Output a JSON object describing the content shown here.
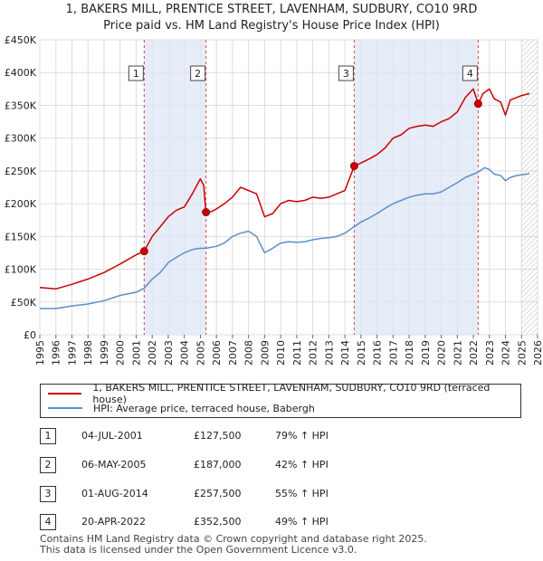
{
  "chart_data": {
    "type": "line",
    "title": "1, BAKERS MILL, PRENTICE STREET, LAVENHAM, SUDBURY, CO10 9RD",
    "subtitle": "Price paid vs. HM Land Registry's House Price Index (HPI)",
    "xlim": [
      1995,
      2026
    ],
    "ylim": [
      0,
      450000
    ],
    "x_ticks": [
      "1995",
      "1996",
      "1997",
      "1998",
      "1999",
      "2000",
      "2001",
      "2002",
      "2003",
      "2004",
      "2005",
      "2006",
      "2007",
      "2008",
      "2009",
      "2010",
      "2011",
      "2012",
      "2013",
      "2014",
      "2015",
      "2016",
      "2017",
      "2018",
      "2019",
      "2020",
      "2021",
      "2022",
      "2023",
      "2024",
      "2025",
      "2026"
    ],
    "y_ticks": [
      {
        "value": 0,
        "label": "£0"
      },
      {
        "value": 50000,
        "label": "£50K"
      },
      {
        "value": 100000,
        "label": "£100K"
      },
      {
        "value": 150000,
        "label": "£150K"
      },
      {
        "value": 200000,
        "label": "£200K"
      },
      {
        "value": 250000,
        "label": "£250K"
      },
      {
        "value": 300000,
        "label": "£300K"
      },
      {
        "value": 350000,
        "label": "£350K"
      },
      {
        "value": 400000,
        "label": "£400K"
      },
      {
        "value": 450000,
        "label": "£450K"
      }
    ],
    "shaded_ranges": [
      [
        2001.5,
        2005.35
      ],
      [
        2014.58,
        2022.3
      ]
    ],
    "future_hatch_from": 2025.0,
    "series": [
      {
        "name": "1, BAKERS MILL, PRENTICE STREET, LAVENHAM, SUDBURY, CO10 9RD (terraced house)",
        "color": "#cc0000",
        "points": [
          [
            1995.0,
            72000
          ],
          [
            1996.0,
            70000
          ],
          [
            1997.0,
            77000
          ],
          [
            1998.0,
            85000
          ],
          [
            1999.0,
            95000
          ],
          [
            2000.0,
            108000
          ],
          [
            2001.0,
            122000
          ],
          [
            2001.5,
            127500
          ],
          [
            2002.0,
            150000
          ],
          [
            2002.5,
            165000
          ],
          [
            2003.0,
            180000
          ],
          [
            2003.5,
            190000
          ],
          [
            2004.0,
            195000
          ],
          [
            2004.5,
            215000
          ],
          [
            2005.0,
            238000
          ],
          [
            2005.2,
            228000
          ],
          [
            2005.35,
            187000
          ],
          [
            2005.7,
            188000
          ],
          [
            2006.0,
            192000
          ],
          [
            2006.5,
            200000
          ],
          [
            2007.0,
            210000
          ],
          [
            2007.5,
            225000
          ],
          [
            2008.0,
            220000
          ],
          [
            2008.5,
            215000
          ],
          [
            2009.0,
            180000
          ],
          [
            2009.5,
            185000
          ],
          [
            2010.0,
            200000
          ],
          [
            2010.5,
            205000
          ],
          [
            2011.0,
            203000
          ],
          [
            2011.5,
            205000
          ],
          [
            2012.0,
            210000
          ],
          [
            2012.5,
            208000
          ],
          [
            2013.0,
            210000
          ],
          [
            2013.5,
            215000
          ],
          [
            2014.0,
            220000
          ],
          [
            2014.58,
            257500
          ],
          [
            2015.0,
            262000
          ],
          [
            2015.5,
            268000
          ],
          [
            2016.0,
            275000
          ],
          [
            2016.5,
            285000
          ],
          [
            2017.0,
            300000
          ],
          [
            2017.5,
            305000
          ],
          [
            2018.0,
            315000
          ],
          [
            2018.5,
            318000
          ],
          [
            2019.0,
            320000
          ],
          [
            2019.5,
            318000
          ],
          [
            2020.0,
            325000
          ],
          [
            2020.5,
            330000
          ],
          [
            2021.0,
            340000
          ],
          [
            2021.5,
            362000
          ],
          [
            2022.0,
            375000
          ],
          [
            2022.3,
            352500
          ],
          [
            2022.6,
            368000
          ],
          [
            2023.0,
            375000
          ],
          [
            2023.3,
            360000
          ],
          [
            2023.7,
            355000
          ],
          [
            2024.0,
            335000
          ],
          [
            2024.3,
            358000
          ],
          [
            2024.7,
            362000
          ],
          [
            2025.0,
            365000
          ],
          [
            2025.5,
            368000
          ]
        ]
      },
      {
        "name": "HPI: Average price, terraced house, Babergh",
        "color": "#5b8fc9",
        "points": [
          [
            1995.0,
            40000
          ],
          [
            1996.0,
            40000
          ],
          [
            1997.0,
            44000
          ],
          [
            1998.0,
            47000
          ],
          [
            1999.0,
            52000
          ],
          [
            2000.0,
            60000
          ],
          [
            2001.0,
            65000
          ],
          [
            2001.5,
            71000
          ],
          [
            2002.0,
            85000
          ],
          [
            2002.5,
            95000
          ],
          [
            2003.0,
            110000
          ],
          [
            2003.5,
            118000
          ],
          [
            2004.0,
            125000
          ],
          [
            2004.5,
            130000
          ],
          [
            2005.0,
            132000
          ],
          [
            2005.35,
            132000
          ],
          [
            2006.0,
            135000
          ],
          [
            2006.5,
            140000
          ],
          [
            2007.0,
            150000
          ],
          [
            2007.5,
            155000
          ],
          [
            2008.0,
            158000
          ],
          [
            2008.5,
            150000
          ],
          [
            2009.0,
            125000
          ],
          [
            2009.5,
            132000
          ],
          [
            2010.0,
            140000
          ],
          [
            2010.5,
            142000
          ],
          [
            2011.0,
            141000
          ],
          [
            2011.5,
            142000
          ],
          [
            2012.0,
            145000
          ],
          [
            2012.5,
            147000
          ],
          [
            2013.0,
            148000
          ],
          [
            2013.5,
            150000
          ],
          [
            2014.0,
            155000
          ],
          [
            2014.58,
            165000
          ],
          [
            2015.0,
            172000
          ],
          [
            2015.5,
            178000
          ],
          [
            2016.0,
            185000
          ],
          [
            2016.5,
            193000
          ],
          [
            2017.0,
            200000
          ],
          [
            2017.5,
            205000
          ],
          [
            2018.0,
            210000
          ],
          [
            2018.5,
            213000
          ],
          [
            2019.0,
            215000
          ],
          [
            2019.5,
            215000
          ],
          [
            2020.0,
            218000
          ],
          [
            2020.5,
            225000
          ],
          [
            2021.0,
            232000
          ],
          [
            2021.5,
            240000
          ],
          [
            2022.0,
            245000
          ],
          [
            2022.3,
            248000
          ],
          [
            2022.7,
            255000
          ],
          [
            2023.0,
            252000
          ],
          [
            2023.3,
            245000
          ],
          [
            2023.7,
            243000
          ],
          [
            2024.0,
            235000
          ],
          [
            2024.3,
            240000
          ],
          [
            2024.7,
            243000
          ],
          [
            2025.0,
            244000
          ],
          [
            2025.5,
            246000
          ]
        ]
      }
    ],
    "sales": [
      {
        "num": "1",
        "year": 2001.5,
        "price": 127500,
        "date": "04-JUL-2001",
        "price_label": "£127,500",
        "hpi_label": "79% ↑ HPI"
      },
      {
        "num": "2",
        "year": 2005.35,
        "price": 187000,
        "date": "06-MAY-2005",
        "price_label": "£187,000",
        "hpi_label": "42% ↑ HPI"
      },
      {
        "num": "3",
        "year": 2014.58,
        "price": 257500,
        "date": "01-AUG-2014",
        "price_label": "£257,500",
        "hpi_label": "55% ↑ HPI"
      },
      {
        "num": "4",
        "year": 2022.3,
        "price": 352500,
        "date": "20-APR-2022",
        "price_label": "£352,500",
        "hpi_label": "49% ↑ HPI"
      }
    ]
  },
  "legend": {
    "red_label": "1, BAKERS MILL, PRENTICE STREET, LAVENHAM, SUDBURY, CO10 9RD (terraced house)",
    "blue_label": "HPI: Average price, terraced house, Babergh"
  },
  "footer": {
    "line1": "Contains HM Land Registry data © Crown copyright and database right 2025.",
    "line2": "This data is licensed under the Open Government Licence v3.0."
  }
}
